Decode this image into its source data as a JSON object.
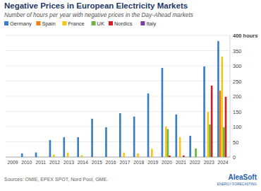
{
  "chart_data": {
    "type": "bar",
    "title": "Negative Prices in European Electricity Markets",
    "subtitle": "Number of hours per year with negative prices in the Day-Ahead markets",
    "source": "Sources: OMIE, EPEX SPOT, Nord Pool, GME.",
    "logo": [
      "AleaSoft",
      "ENERGY FORECASTING"
    ],
    "categories": [
      "2009",
      "2010",
      "2011",
      "2012",
      "2013",
      "2014",
      "2015",
      "2016",
      "2017",
      "2018",
      "2019",
      "2020",
      "2021",
      "2022",
      "2023",
      "2024"
    ],
    "series": [
      {
        "name": "Germany",
        "color": "#3a7dc9",
        "values": [
          0,
          12,
          15,
          56,
          65,
          65,
          126,
          98,
          144,
          133,
          209,
          293,
          140,
          70,
          298,
          381
        ]
      },
      {
        "name": "Spain",
        "color": "#f07f13",
        "values": [
          0,
          0,
          0,
          0,
          0,
          0,
          0,
          0,
          0,
          0,
          0,
          0,
          0,
          0,
          0,
          218
        ]
      },
      {
        "name": "France",
        "color": "#f5c518",
        "values": [
          0,
          0,
          0,
          8,
          15,
          6,
          0,
          0,
          15,
          12,
          27,
          100,
          65,
          0,
          148,
          330
        ]
      },
      {
        "name": "UK",
        "color": "#6cb33f",
        "values": [
          0,
          0,
          0,
          0,
          0,
          0,
          0,
          0,
          0,
          0,
          0,
          92,
          0,
          28,
          107,
          98
        ]
      },
      {
        "name": "Nordics",
        "color": "#d32027",
        "values": [
          0,
          0,
          0,
          0,
          0,
          0,
          0,
          0,
          0,
          0,
          0,
          5,
          5,
          0,
          235,
          198
        ]
      },
      {
        "name": "Italy",
        "color": "#7b3fa0",
        "values": [
          0,
          0,
          0,
          0,
          0,
          0,
          0,
          0,
          0,
          0,
          0,
          0,
          0,
          0,
          0,
          0
        ]
      }
    ],
    "ylim": [
      0,
      400
    ],
    "yticks": [
      0,
      50,
      100,
      150,
      200,
      250,
      300,
      350,
      {
        "value": 400,
        "label": "400 hours"
      }
    ],
    "grid": true
  }
}
